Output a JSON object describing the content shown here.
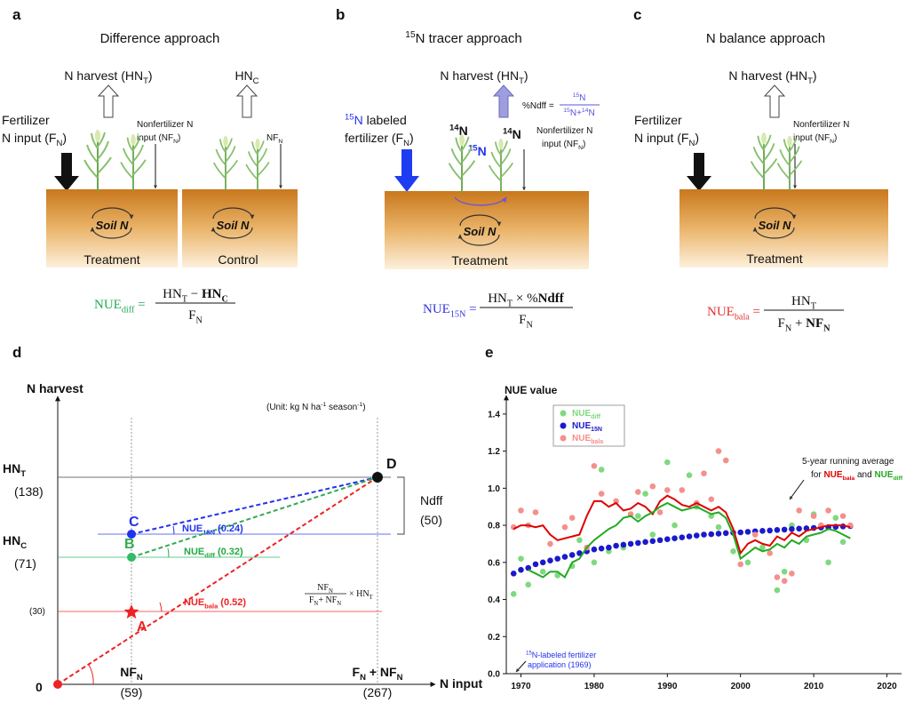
{
  "panel_a": {
    "label": "a",
    "title": "Difference approach",
    "harvest_t": [
      "N harvest  (HN",
      {
        "sub": "T"
      },
      ")"
    ],
    "harvest_c": [
      "HN",
      {
        "sub": "C"
      }
    ],
    "fert1": "Fertilizer",
    "fert2": [
      "N input (F",
      {
        "sub": "N"
      },
      ")"
    ],
    "nonfert1": "Nonfertilizer N",
    "nonfert2": [
      "input  (NF",
      {
        "sub": "N"
      },
      ")"
    ],
    "nf_c": [
      "NF",
      {
        "sub": "N"
      }
    ],
    "soil_1": "Soil N",
    "soil_2": "Soil N",
    "treatment": "Treatment",
    "control": "Control",
    "eq_lhs": [
      "NUE",
      {
        "sub": "diff"
      },
      " ="
    ],
    "eq_num": [
      "HN",
      {
        "sub": "T"
      },
      " − ",
      {
        "text": "HN",
        "bold": true
      },
      {
        "sub": "C",
        "bold": true
      }
    ],
    "eq_den": [
      "F",
      {
        "sub": "N"
      }
    ]
  },
  "panel_b": {
    "label": "b",
    "title": [
      {
        "sup": "15"
      },
      "N tracer approach"
    ],
    "harvest": [
      "N harvest  (HN",
      {
        "sub": "T"
      },
      ")"
    ],
    "ndff_lhs": "%Ndff =",
    "ndff_num": [
      {
        "sup": "15"
      },
      "N"
    ],
    "ndff_den": [
      {
        "sup": "15"
      },
      "N+",
      {
        "sup": "14"
      },
      "N"
    ],
    "fert1": [
      {
        "sup": "15",
        "color": "#2233ee"
      },
      {
        "text": "N",
        "color": "#2233ee"
      },
      " labeled"
    ],
    "fert2": [
      "fertilizer  (F",
      {
        "sub": "N"
      },
      ")"
    ],
    "n14_1": [
      {
        "sup": "14"
      },
      "N"
    ],
    "n14_2": [
      {
        "sup": "14"
      },
      "N"
    ],
    "n15": [
      {
        "sup": "15"
      },
      "N"
    ],
    "nonfert1": "Nonfertilizer N",
    "nonfert2": [
      "input  (NF",
      {
        "sub": "N"
      },
      ")"
    ],
    "soil": "Soil N",
    "treatment": "Treatment",
    "eq_lhs": [
      "NUE",
      {
        "sub": "15N"
      },
      " ="
    ],
    "eq_num": [
      "HN",
      {
        "sub": "T"
      },
      " × %",
      {
        "text": "Ndff",
        "bold": true
      }
    ],
    "eq_den": [
      "F",
      {
        "sub": "N"
      }
    ]
  },
  "panel_c": {
    "label": "c",
    "title": "N balance approach",
    "harvest": [
      "N harvest  (HN",
      {
        "sub": "T"
      },
      ")"
    ],
    "fert1": "Fertilizer",
    "fert2": [
      "N input (F",
      {
        "sub": "N"
      },
      ")"
    ],
    "nonfert1": "Nonfertilizer N",
    "nonfert2": [
      "input (NF",
      {
        "sub": "N"
      },
      ")"
    ],
    "soil": "Soil N",
    "treatment": "Treatment",
    "eq_lhs": [
      "NUE",
      {
        "sub": "bala"
      },
      " ="
    ],
    "eq_num": [
      "HN",
      {
        "sub": "T"
      }
    ],
    "eq_den": [
      "F",
      {
        "sub": "N"
      },
      " + ",
      {
        "text": "NF",
        "bold": true
      },
      {
        "sub": "N",
        "bold": true
      }
    ]
  },
  "panel_d": {
    "label": "d",
    "y_title": "N harvest",
    "x_title": "N input",
    "unit": [
      "(Unit: kg N ha",
      {
        "sup": "-1"
      },
      " season",
      {
        "sup": "-1"
      },
      ")"
    ],
    "hn_t": [
      "HN",
      {
        "sub": "T"
      }
    ],
    "hn_t_val": "(138)",
    "hn_c": [
      "HN",
      {
        "sub": "C"
      }
    ],
    "hn_c_val": "(71)",
    "a_val": "(30)",
    "origin": "0",
    "nf": [
      "NF",
      {
        "sub": "N"
      }
    ],
    "nf_val": "(59)",
    "fnf": [
      "F",
      {
        "sub": "N"
      },
      " + NF",
      {
        "sub": "N"
      }
    ],
    "fnf_val": "(267)",
    "point_a": "A",
    "point_b": "B",
    "point_c": "C",
    "point_d": "D",
    "ndff": "Ndff",
    "ndff_val": "(50)",
    "nue_15n": [
      "NUE",
      {
        "sub": "15N"
      },
      "  (0.24)"
    ],
    "nue_diff": [
      "NUE",
      {
        "sub": "diff"
      },
      "  (0.32)"
    ],
    "nue_bala": [
      "NUE",
      {
        "sub": "bala"
      },
      "  (0.52)"
    ],
    "frac_num": [
      "NF",
      {
        "sub": "N"
      }
    ],
    "frac_den": [
      "F",
      {
        "sub": "N"
      },
      "+ NF",
      {
        "sub": "N"
      }
    ],
    "frac_times": [
      "× HN",
      {
        "sub": "T"
      }
    ]
  },
  "panel_e": {
    "label": "e",
    "annotation_1": "5-year running average",
    "annotation_2": [
      "for ",
      {
        "text": "NUE",
        "color": "#e00000",
        "bold": true
      },
      {
        "sub": "bala",
        "color": "#e00000",
        "bold": true
      },
      " and ",
      {
        "text": "NUE",
        "color": "#22aa22",
        "bold": true
      },
      {
        "sub": "diff",
        "color": "#22aa22",
        "bold": true
      }
    ],
    "note_1": [
      {
        "sup": "15"
      },
      "N-labeled fertilizer"
    ],
    "note_2": "application (1969)"
  },
  "chart_data": {
    "type": "scatter",
    "y_label": "NUE value",
    "xlim": [
      1968,
      2022
    ],
    "ylim": [
      0,
      1.5
    ],
    "xticks": [
      1970,
      1980,
      1990,
      2000,
      2010,
      2020
    ],
    "yticks": [
      {
        "value": 0,
        "label": "0.0"
      },
      0.2,
      0.4,
      0.6,
      0.8,
      {
        "value": 1,
        "label": "1.0"
      },
      1.2,
      1.4
    ],
    "series": [
      {
        "name": "NUE",
        "subscript": "diff",
        "kind": "points",
        "color": "#7fd97f",
        "x": [
          1969,
          1970,
          1971,
          1973,
          1975,
          1977,
          1978,
          1980,
          1981,
          1982,
          1984,
          1986,
          1987,
          1988,
          1990,
          1991,
          1993,
          1994,
          1996,
          1997,
          1999,
          2001,
          2003,
          2005,
          2006,
          2007,
          2009,
          2010,
          2012,
          2013,
          2014
        ],
        "values": [
          0.43,
          0.62,
          0.48,
          0.55,
          0.53,
          0.58,
          0.72,
          0.6,
          1.1,
          0.66,
          0.68,
          0.85,
          0.97,
          0.75,
          1.14,
          0.8,
          1.07,
          0.9,
          0.85,
          0.79,
          0.66,
          0.6,
          0.68,
          0.45,
          0.55,
          0.8,
          0.72,
          0.86,
          0.6,
          0.84,
          0.71
        ]
      },
      {
        "name": "NUE",
        "subscript": "15N",
        "kind": "points",
        "color": "#1a1acc",
        "x": [
          1969,
          1970,
          1971,
          1972,
          1973,
          1974,
          1975,
          1976,
          1977,
          1978,
          1979,
          1980,
          1981,
          1982,
          1983,
          1984,
          1985,
          1986,
          1987,
          1988,
          1989,
          1990,
          1991,
          1992,
          1993,
          1994,
          1995,
          1996,
          1997,
          1998,
          1999,
          2000,
          2001,
          2002,
          2003,
          2004,
          2005,
          2006,
          2007,
          2008,
          2009,
          2010,
          2011,
          2012,
          2013,
          2014,
          2015
        ],
        "values": [
          0.54,
          0.56,
          0.57,
          0.59,
          0.6,
          0.61,
          0.62,
          0.63,
          0.64,
          0.65,
          0.66,
          0.67,
          0.675,
          0.68,
          0.69,
          0.695,
          0.7,
          0.705,
          0.71,
          0.715,
          0.72,
          0.725,
          0.73,
          0.735,
          0.74,
          0.745,
          0.75,
          0.752,
          0.755,
          0.758,
          0.76,
          0.762,
          0.765,
          0.768,
          0.77,
          0.772,
          0.775,
          0.777,
          0.78,
          0.782,
          0.784,
          0.786,
          0.788,
          0.79,
          0.792,
          0.794,
          0.796
        ]
      },
      {
        "name": "NUE",
        "subscript": "bala",
        "kind": "points",
        "color": "#f4908c",
        "x": [
          1969,
          1970,
          1971,
          1972,
          1974,
          1976,
          1977,
          1979,
          1980,
          1981,
          1983,
          1985,
          1986,
          1988,
          1989,
          1990,
          1992,
          1994,
          1995,
          1996,
          1997,
          1998,
          2000,
          2002,
          2004,
          2005,
          2006,
          2007,
          2008,
          2010,
          2011,
          2012,
          2014,
          2015
        ],
        "values": [
          0.79,
          0.88,
          0.8,
          0.87,
          0.7,
          0.79,
          0.84,
          0.68,
          1.12,
          0.97,
          0.93,
          0.86,
          0.98,
          1.01,
          0.87,
          0.99,
          0.99,
          0.92,
          1.08,
          0.94,
          1.2,
          1.15,
          0.59,
          0.75,
          0.65,
          0.52,
          0.5,
          0.54,
          0.88,
          0.85,
          0.8,
          0.88,
          0.85,
          0.8
        ]
      },
      {
        "kind": "line",
        "color": "#e00000",
        "x": [
          1969,
          1970,
          1971,
          1972,
          1973,
          1974,
          1975,
          1976,
          1977,
          1978,
          1979,
          1980,
          1981,
          1982,
          1983,
          1984,
          1985,
          1986,
          1987,
          1988,
          1989,
          1990,
          1991,
          1992,
          1993,
          1994,
          1995,
          1996,
          1997,
          1998,
          1999,
          2000,
          2001,
          2002,
          2003,
          2004,
          2005,
          2006,
          2007,
          2008,
          2009,
          2010,
          2011,
          2012,
          2013,
          2014,
          2015
        ],
        "values": [
          0.78,
          0.8,
          0.8,
          0.79,
          0.8,
          0.75,
          0.72,
          0.73,
          0.74,
          0.75,
          0.85,
          0.93,
          0.93,
          0.9,
          0.92,
          0.88,
          0.89,
          0.92,
          0.9,
          0.86,
          0.93,
          0.96,
          0.94,
          0.91,
          0.9,
          0.92,
          0.9,
          0.88,
          0.9,
          0.87,
          0.78,
          0.65,
          0.7,
          0.72,
          0.7,
          0.69,
          0.74,
          0.72,
          0.76,
          0.74,
          0.77,
          0.78,
          0.79,
          0.8,
          0.8,
          0.8,
          0.79
        ]
      },
      {
        "kind": "line",
        "color": "#22aa22",
        "x": [
          1969,
          1970,
          1971,
          1972,
          1973,
          1974,
          1975,
          1976,
          1977,
          1978,
          1979,
          1980,
          1981,
          1982,
          1983,
          1984,
          1985,
          1986,
          1987,
          1988,
          1989,
          1990,
          1991,
          1992,
          1993,
          1994,
          1995,
          1996,
          1997,
          1998,
          1999,
          2000,
          2001,
          2002,
          2003,
          2004,
          2005,
          2006,
          2007,
          2008,
          2009,
          2010,
          2011,
          2012,
          2013,
          2014,
          2015
        ],
        "values": [
          null,
          null,
          0.56,
          0.54,
          0.52,
          0.55,
          0.55,
          0.52,
          0.6,
          0.62,
          0.68,
          0.72,
          0.75,
          0.78,
          0.8,
          0.84,
          0.85,
          0.82,
          0.85,
          0.87,
          0.9,
          0.92,
          0.9,
          0.88,
          0.89,
          0.9,
          0.88,
          0.86,
          0.87,
          0.84,
          0.75,
          0.62,
          0.65,
          0.68,
          0.66,
          0.67,
          0.7,
          0.68,
          0.72,
          0.7,
          0.74,
          0.75,
          0.76,
          0.78,
          0.77,
          0.75,
          0.73
        ]
      }
    ]
  }
}
